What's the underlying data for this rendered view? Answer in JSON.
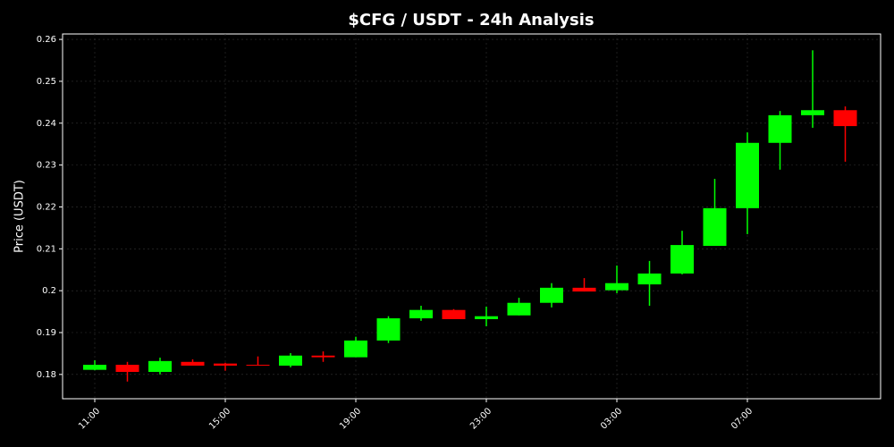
{
  "chart_data": {
    "type": "candlestick",
    "title": "$CFG / USDT - 24h Analysis",
    "y_label": "Price (USDT)",
    "categories": [
      "11:00",
      null,
      null,
      null,
      "15:00",
      null,
      null,
      null,
      "19:00",
      null,
      null,
      null,
      "23:00",
      null,
      null,
      null,
      "03:00",
      null,
      null,
      null,
      "07:00",
      null,
      null,
      null
    ],
    "open": [
      0.1811,
      0.1823,
      0.1806,
      0.183,
      0.1826,
      0.1823,
      0.1821,
      0.1845,
      0.1841,
      0.1881,
      0.1934,
      0.1954,
      0.1932,
      0.1941,
      0.1971,
      0.2007,
      0.2001,
      0.2015,
      0.2041,
      0.2107,
      0.2197,
      0.2353,
      0.2419,
      0.2431
    ],
    "high": [
      0.1834,
      0.183,
      0.184,
      0.1836,
      0.1828,
      0.1843,
      0.1851,
      0.1855,
      0.189,
      0.1939,
      0.1964,
      0.1956,
      0.1962,
      0.1983,
      0.2018,
      0.203,
      0.206,
      0.2071,
      0.2143,
      0.2267,
      0.2378,
      0.2429,
      0.2574,
      0.244
    ],
    "low": [
      0.181,
      0.1783,
      0.18,
      0.1821,
      0.1809,
      0.1821,
      0.1817,
      0.183,
      0.1841,
      0.1875,
      0.1928,
      0.1932,
      0.1915,
      0.1941,
      0.196,
      0.1998,
      0.1994,
      0.1964,
      0.2039,
      0.2107,
      0.2135,
      0.2289,
      0.2389,
      0.2308
    ],
    "close": [
      0.1823,
      0.1806,
      0.1832,
      0.1821,
      0.1821,
      0.1821,
      0.1845,
      0.1841,
      0.1881,
      0.1934,
      0.1954,
      0.1932,
      0.1939,
      0.1971,
      0.2007,
      0.1998,
      0.2018,
      0.2041,
      0.2109,
      0.2197,
      0.2353,
      0.2419,
      0.2431,
      0.2393
    ],
    "up_color": "#00ff00",
    "down_color": "#ff0000",
    "ylim": [
      0.1742,
      0.2613
    ],
    "yticks": [
      0.18,
      0.19,
      0.2,
      0.21,
      0.22,
      0.23,
      0.24,
      0.25,
      0.26
    ],
    "grid": true
  }
}
